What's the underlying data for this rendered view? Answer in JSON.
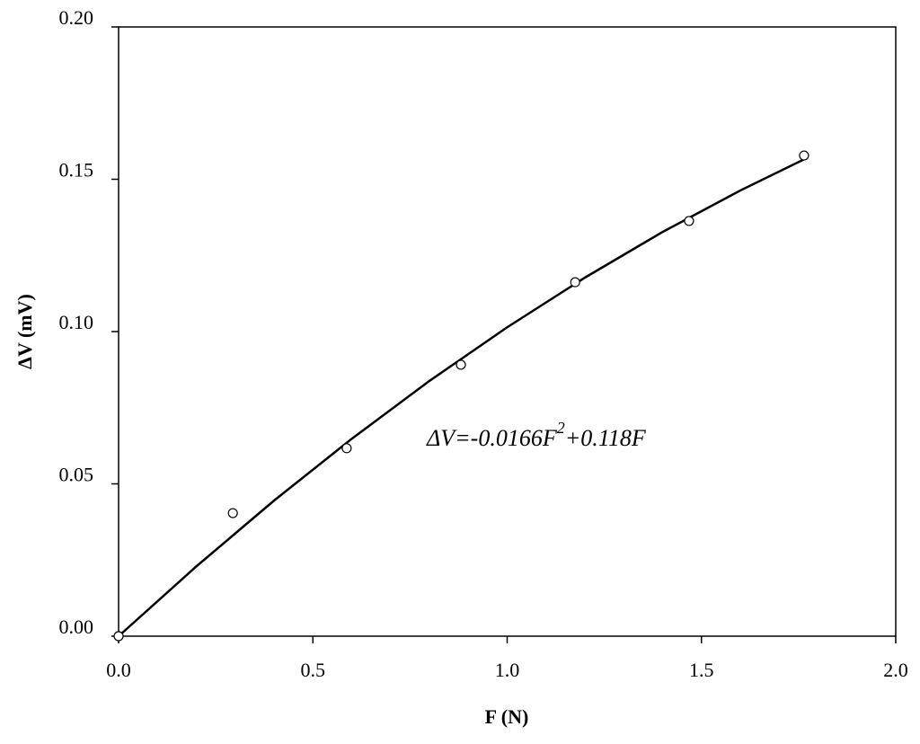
{
  "chart_data": {
    "type": "scatter",
    "xlabel": "F (N)",
    "ylabel": "ΔV (mV)",
    "annotation": [
      "ΔV=-0.0166F",
      "2",
      "+0.118F"
    ],
    "series": [
      {
        "type": "scatter",
        "color": "#000000",
        "x": [
          0,
          0.294,
          0.587,
          0.881,
          1.175,
          1.468,
          1.764
        ],
        "values": [
          0,
          0.0404,
          0.0617,
          0.0891,
          0.1162,
          0.1363,
          0.1578
        ]
      },
      {
        "type": "line",
        "color": "#000000",
        "x": [
          0,
          0.2,
          0.4,
          0.6,
          0.8,
          1.0,
          1.2,
          1.4,
          1.6,
          1.77
        ],
        "values": [
          0,
          0.0229,
          0.0445,
          0.0648,
          0.0838,
          0.1014,
          0.1177,
          0.1327,
          0.1463,
          0.1569
        ]
      }
    ],
    "xlim": [
      0,
      2.0
    ],
    "xticks": [
      {
        "value": 0,
        "label": "0.0"
      },
      {
        "value": 0.5,
        "label": "0.5"
      },
      {
        "value": 1.0,
        "label": "1.0"
      },
      {
        "value": 1.5,
        "label": "1.5"
      },
      {
        "value": 2.0,
        "label": "2.0"
      }
    ],
    "ylim": [
      0,
      0.2
    ],
    "yticks": [
      {
        "value": 0,
        "label": "0.00"
      },
      {
        "value": 0.05,
        "label": "0.05"
      },
      {
        "value": 0.1,
        "label": "0.10"
      },
      {
        "value": 0.15,
        "label": "0.15"
      },
      {
        "value": 0.2,
        "label": "0.20"
      }
    ]
  }
}
